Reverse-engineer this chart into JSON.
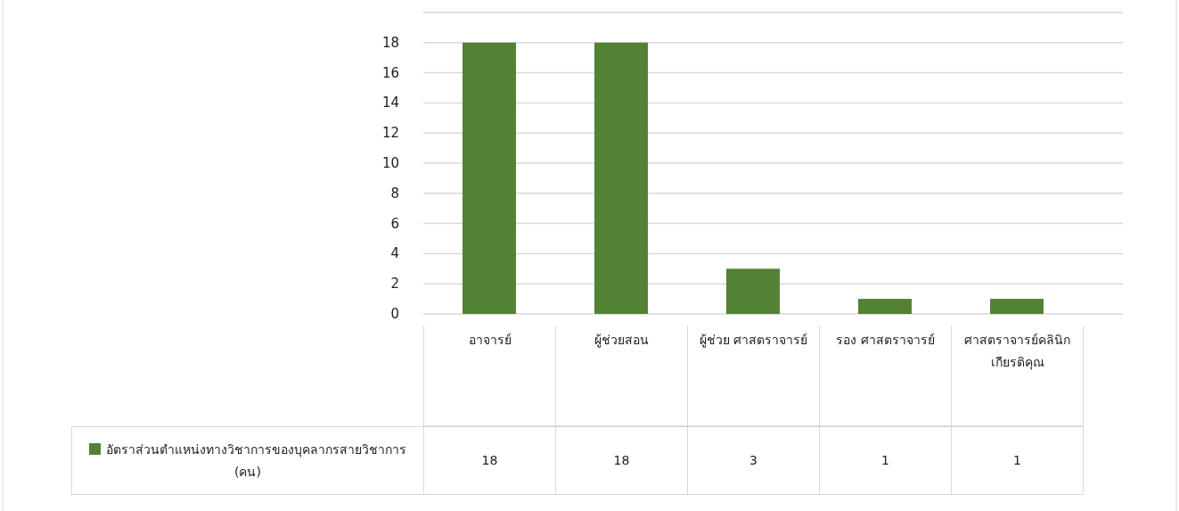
{
  "chart_data": {
    "type": "bar",
    "categories": [
      "อาจารย์",
      "ผู้ช่วยสอน",
      "ผู้ช่วย ศาสตราจารย์",
      "รอง ศาสตราจารย์",
      "ศาสตราจารย์คลินิกเกียรติคุณ"
    ],
    "series": [
      {
        "name": "อัตราส่วนตำแหน่งทางวิชาการของบุคลากรสายวิชาการ (คน)",
        "color": "#548235",
        "values": [
          18,
          18,
          3,
          1,
          1
        ]
      }
    ],
    "ylim": [
      0,
      20
    ],
    "yticks": [
      0,
      2,
      4,
      6,
      8,
      10,
      12,
      14,
      16,
      18,
      {
        "value": 20,
        "label": null
      }
    ],
    "grid": "y",
    "legend": "bottom",
    "data_labels": true
  }
}
